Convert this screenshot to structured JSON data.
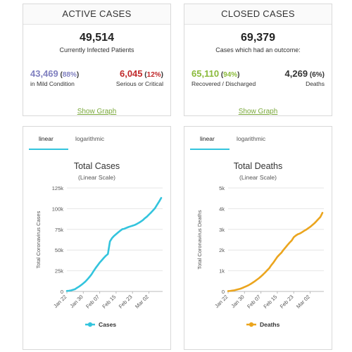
{
  "active_cases": {
    "title": "ACTIVE CASES",
    "total": "49,514",
    "total_caption": "Currently Infected Patients",
    "mild": {
      "value": "43,469",
      "pct_open": " (",
      "pct": "88%",
      "pct_close": ")",
      "caption": "in Mild Condition",
      "color": "#8080c0"
    },
    "serious": {
      "value": "6,045",
      "pct_open": " (",
      "pct": "12%",
      "pct_close": ")",
      "caption": "Serious or Critical",
      "color": "#c0292b"
    },
    "link": "Show Graph"
  },
  "closed_cases": {
    "title": "CLOSED CASES",
    "total": "69,379",
    "total_caption": "Cases which had an outcome:",
    "recovered": {
      "value": "65,110",
      "pct_open": " (",
      "pct": "94%",
      "pct_close": ")",
      "caption": "Recovered / Discharged",
      "color": "#8aba3a"
    },
    "deaths": {
      "value": "4,269",
      "pct_open": " (",
      "pct": "6%",
      "pct_close": ")",
      "caption": "Deaths",
      "color": "#222222"
    },
    "link": "Show Graph"
  },
  "tabs": {
    "linear": "linear",
    "logarithmic": "logarithmic"
  },
  "colors": {
    "cases": "#33c4dd",
    "deaths": "#eba51e",
    "link": "#7aa83b"
  },
  "chart_data": [
    {
      "type": "line",
      "title": "Total Cases",
      "subtitle": "(Linear Scale)",
      "ylabel": "Total Coronavirus Cases",
      "ylim": [
        0,
        125000
      ],
      "yticks": [
        0,
        25000,
        50000,
        75000,
        100000,
        125000
      ],
      "ytick_labels": [
        "0",
        "25k",
        "50k",
        "75k",
        "100k",
        "125k"
      ],
      "x": [
        "Jan 22",
        "Jan 23",
        "Jan 24",
        "Jan 25",
        "Jan 26",
        "Jan 27",
        "Jan 28",
        "Jan 29",
        "Jan 30",
        "Jan 31",
        "Feb 01",
        "Feb 02",
        "Feb 03",
        "Feb 04",
        "Feb 05",
        "Feb 06",
        "Feb 07",
        "Feb 08",
        "Feb 09",
        "Feb 10",
        "Feb 11",
        "Feb 12",
        "Feb 13",
        "Feb 14",
        "Feb 15",
        "Feb 16",
        "Feb 17",
        "Feb 18",
        "Feb 19",
        "Feb 20",
        "Feb 21",
        "Feb 22",
        "Feb 23",
        "Feb 24",
        "Feb 25",
        "Feb 26",
        "Feb 27",
        "Feb 28",
        "Feb 29",
        "Mar 01",
        "Mar 02",
        "Mar 03",
        "Mar 04",
        "Mar 05",
        "Mar 06",
        "Mar 07",
        "Mar 08"
      ],
      "xtick_labels": [
        "Jan 22",
        "Jan 30",
        "Feb 07",
        "Feb 15",
        "Feb 23",
        "Mar 02"
      ],
      "series": [
        {
          "name": "Cases",
          "values": [
            580,
            850,
            1300,
            2000,
            2800,
            4500,
            6000,
            7800,
            9800,
            11900,
            14600,
            17400,
            20600,
            24500,
            28200,
            31500,
            34900,
            37600,
            40500,
            43100,
            45200,
            60400,
            64400,
            67100,
            69200,
            71300,
            73300,
            75200,
            75700,
            76800,
            77800,
            78600,
            79400,
            80200,
            81400,
            82800,
            84300,
            86000,
            88400,
            90300,
            92800,
            95200,
            97900,
            100700,
            104700,
            108700,
            113000
          ]
        }
      ],
      "legend": "bottom-center",
      "grid": true
    },
    {
      "type": "line",
      "title": "Total Deaths",
      "subtitle": "(Linear Scale)",
      "ylabel": "Total Coronavirus Deaths",
      "ylim": [
        0,
        5000
      ],
      "yticks": [
        0,
        1000,
        2000,
        3000,
        4000,
        5000
      ],
      "ytick_labels": [
        "0",
        "1k",
        "2k",
        "3k",
        "4k",
        "5k"
      ],
      "x": [
        "Jan 22",
        "Jan 23",
        "Jan 24",
        "Jan 25",
        "Jan 26",
        "Jan 27",
        "Jan 28",
        "Jan 29",
        "Jan 30",
        "Jan 31",
        "Feb 01",
        "Feb 02",
        "Feb 03",
        "Feb 04",
        "Feb 05",
        "Feb 06",
        "Feb 07",
        "Feb 08",
        "Feb 09",
        "Feb 10",
        "Feb 11",
        "Feb 12",
        "Feb 13",
        "Feb 14",
        "Feb 15",
        "Feb 16",
        "Feb 17",
        "Feb 18",
        "Feb 19",
        "Feb 20",
        "Feb 21",
        "Feb 22",
        "Feb 23",
        "Feb 24",
        "Feb 25",
        "Feb 26",
        "Feb 27",
        "Feb 28",
        "Feb 29",
        "Mar 01",
        "Mar 02",
        "Mar 03",
        "Mar 04",
        "Mar 05",
        "Mar 06",
        "Mar 07",
        "Mar 08"
      ],
      "xtick_labels": [
        "Jan 22",
        "Jan 30",
        "Feb 07",
        "Feb 15",
        "Feb 23",
        "Mar 02"
      ],
      "series": [
        {
          "name": "Deaths",
          "values": [
            17,
            25,
            41,
            56,
            80,
            106,
            132,
            170,
            213,
            259,
            304,
            362,
            426,
            492,
            565,
            638,
            724,
            813,
            910,
            1018,
            1115,
            1261,
            1383,
            1526,
            1669,
            1775,
            1873,
            2009,
            2126,
            2247,
            2360,
            2460,
            2618,
            2699,
            2763,
            2800,
            2858,
            2924,
            2979,
            3050,
            3117,
            3200,
            3285,
            3387,
            3494,
            3599,
            3800
          ]
        }
      ],
      "legend": "bottom-center",
      "grid": true
    }
  ]
}
